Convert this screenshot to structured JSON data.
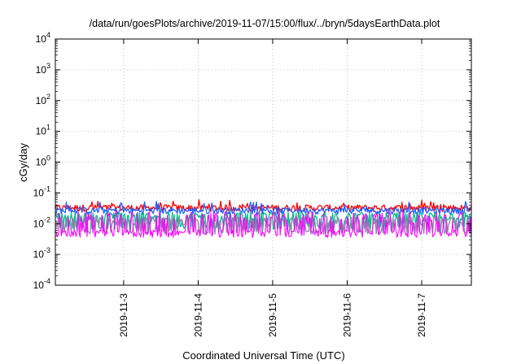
{
  "chart_data": {
    "type": "line",
    "title": "/data/run/goesPlots/archive/2019-11-07/15:00/flux/../bryn/5daysEarthData.plot",
    "xlabel": "Coordinated Universal Time (UTC)",
    "ylabel": "cGy/day",
    "yscale": "log",
    "ylim": [
      0.0001,
      10000
    ],
    "y_tick_exponents": [
      "-4",
      "-3",
      "-2",
      "-1",
      "0",
      "1",
      "2",
      "3",
      "4"
    ],
    "y_tick_base": "10",
    "xlim": [
      "2019-11-02T02:00",
      "2019-11-07T16:00"
    ],
    "x_ticks": [
      {
        "value": "2019-11-03T00:00",
        "label": "2019-11-3"
      },
      {
        "value": "2019-11-04T00:00",
        "label": "2019-11-4"
      },
      {
        "value": "2019-11-05T00:00",
        "label": "2019-11-5"
      },
      {
        "value": "2019-11-06T00:00",
        "label": "2019-11-6"
      },
      {
        "value": "2019-11-07T00:00",
        "label": "2019-11-7"
      }
    ],
    "grid": true,
    "legend": "none",
    "series": [
      {
        "color": "#ff0000",
        "base": 0.033,
        "peak": 0.05,
        "low": 0.022
      },
      {
        "color": "#2060ff",
        "base": 0.027,
        "peak": 0.045,
        "low": 0.018
      },
      {
        "color": "#00bb88",
        "base": 0.017,
        "peak": 0.028,
        "low": 0.0065
      },
      {
        "color": "#8888aa",
        "base": 0.012,
        "peak": 0.02,
        "low": 0.0045
      },
      {
        "color": "#ff00ff",
        "base": 0.0055,
        "peak": 0.025,
        "low": 0.0035
      }
    ]
  }
}
